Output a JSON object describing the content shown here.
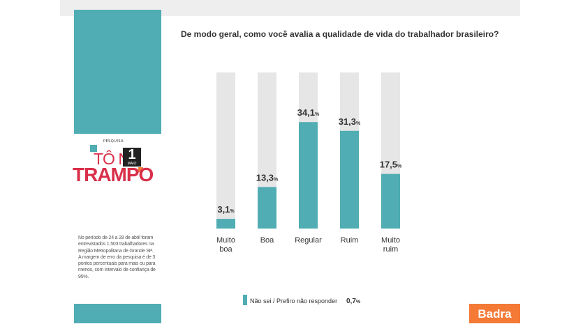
{
  "question": "De modo geral, como você avalia a qualidade de vida do trabalhador brasileiro?",
  "logo": {
    "pesquisa": "PESQUISA",
    "line1": "TÔ NO",
    "line2": "TRAMPO",
    "badge_number": "1",
    "badge_month": "MAIO"
  },
  "methodology": "No período de 24 a 28 de abril foram entrevistados 1.503 trabalhadores na Região Metropolitana de Grande SP. A margem de erro da pesquisa é de 3 pontos percentuais para mais ou para menos, com intervalo de confiança de 95%.",
  "brand": "Badra",
  "colors": {
    "accent": "#4fadb3",
    "track": "#e6e6e6",
    "brand": "#f47a36",
    "logo_red": "#d9304a"
  },
  "chart_data": {
    "type": "bar",
    "title": "De modo geral, como você avalia a qualidade de vida do trabalhador brasileiro?",
    "categories": [
      [
        "Muito",
        "boa"
      ],
      [
        "Boa"
      ],
      [
        "Regular"
      ],
      [
        "Ruim"
      ],
      [
        "Muito",
        "ruim"
      ]
    ],
    "values": [
      3.1,
      13.3,
      34.1,
      31.3,
      17.5
    ],
    "value_labels": [
      "3,1",
      "13,3",
      "34,1",
      "31,3",
      "17,5"
    ],
    "unit": "%",
    "ylim": [
      0,
      50
    ],
    "grid": false,
    "legend": {
      "label": "Não sei / Prefiro não responder",
      "value": "0,7",
      "unit": "%"
    }
  }
}
